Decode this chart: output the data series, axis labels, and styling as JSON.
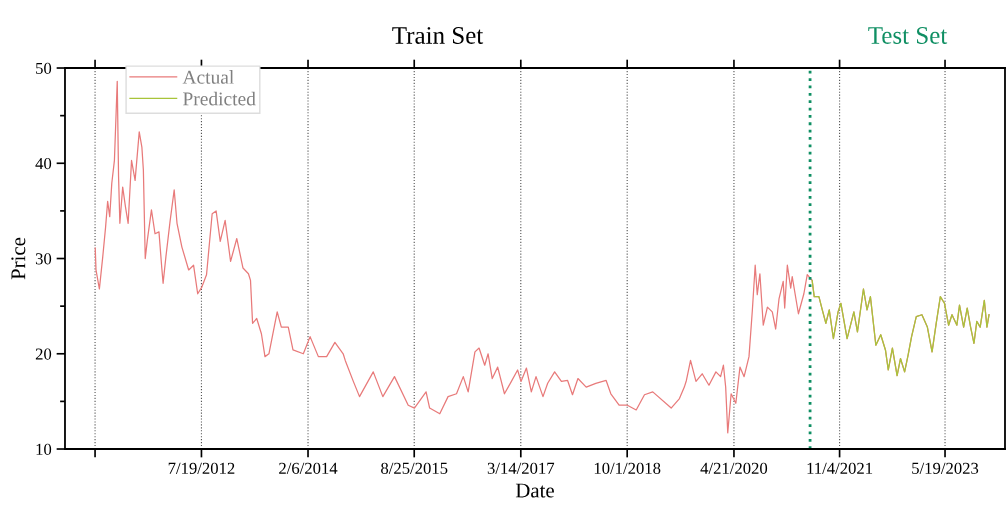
{
  "chart_data": {
    "type": "line",
    "title": "Train Set",
    "xlabel": "Date",
    "ylabel": "Price",
    "xlim": [
      "2010-07-24",
      "2024-04-02"
    ],
    "ylim": [
      10,
      50
    ],
    "xticks": [
      {
        "value": "2010-12-31",
        "label": null
      },
      {
        "value": "2012-07-19",
        "label": "7/19/2012"
      },
      {
        "value": "2014-02-06",
        "label": "2/6/2014"
      },
      {
        "value": "2015-08-25",
        "label": "8/25/2015"
      },
      {
        "value": "2017-03-14",
        "label": "3/14/2017"
      },
      {
        "value": "2018-10-01",
        "label": "10/1/2018"
      },
      {
        "value": "2020-04-21",
        "label": "4/21/2020"
      },
      {
        "value": "2021-11-04",
        "label": "11/4/2021"
      },
      {
        "value": "2023-05-19",
        "label": "5/19/2023"
      }
    ],
    "yticks": [
      10,
      {
        "value": 15,
        "label": null
      },
      20,
      {
        "value": 25,
        "label": null
      },
      30,
      {
        "value": 35,
        "label": null
      },
      40,
      {
        "value": 45,
        "label": null
      },
      50
    ],
    "grid": "x",
    "legend": "top left",
    "ref_lines": [
      {
        "axis": "x",
        "value": "2021-05-31",
        "label": "Test Set",
        "color": "#0f8f63",
        "line_style": "dotted"
      }
    ],
    "series": [
      {
        "name": "Actual",
        "color": "#e87a7a",
        "x": [
          "2011-01-01",
          "2011-01-05",
          "2011-01-23",
          "2011-02-10",
          "2011-02-25",
          "2011-03-08",
          "2011-03-19",
          "2011-03-30",
          "2011-04-13",
          "2011-04-28",
          "2011-05-05",
          "2011-05-12",
          "2011-05-27",
          "2011-06-11",
          "2011-06-25",
          "2011-07-13",
          "2011-08-01",
          "2011-08-23",
          "2011-09-06",
          "2011-09-14",
          "2011-09-24",
          "2011-10-05",
          "2011-10-27",
          "2011-11-15",
          "2011-12-06",
          "2011-12-21",
          "2011-12-28",
          "2012-01-12",
          "2012-02-03",
          "2012-02-25",
          "2012-03-11",
          "2012-04-06",
          "2012-05-12",
          "2012-06-07",
          "2012-06-29",
          "2012-07-21",
          "2012-08-15",
          "2012-09-14",
          "2012-10-05",
          "2012-10-27",
          "2012-11-22",
          "2012-12-21",
          "2013-01-23",
          "2013-02-25",
          "2013-03-26",
          "2013-04-06",
          "2013-04-17",
          "2013-05-09",
          "2013-06-03",
          "2013-06-22",
          "2013-07-13",
          "2013-08-26",
          "2013-09-17",
          "2013-10-24",
          "2013-11-18",
          "2014-01-12",
          "2014-02-17",
          "2014-04-02",
          "2014-05-16",
          "2014-06-29",
          "2014-08-12",
          "2014-08-23",
          "2014-10-05",
          "2014-11-07",
          "2015-01-19",
          "2015-03-11",
          "2015-05-12",
          "2015-07-24",
          "2015-08-26",
          "2015-10-27",
          "2015-11-15",
          "2016-01-08",
          "2016-02-21",
          "2016-04-06",
          "2016-05-12",
          "2016-06-07",
          "2016-07-13",
          "2016-08-04",
          "2016-09-03",
          "2016-09-21",
          "2016-10-13",
          "2016-11-11",
          "2016-12-17",
          "2017-01-23",
          "2017-02-25",
          "2017-03-15",
          "2017-04-13",
          "2017-05-09",
          "2017-06-03",
          "2017-07-10",
          "2017-08-04",
          "2017-09-10",
          "2017-10-16",
          "2017-11-18",
          "2017-12-14",
          "2018-01-12",
          "2018-02-25",
          "2018-04-17",
          "2018-06-11",
          "2018-07-06",
          "2018-08-19",
          "2018-10-02",
          "2018-11-18",
          "2019-01-01",
          "2019-02-14",
          "2019-05-23",
          "2019-07-06",
          "2019-08-01",
          "2019-08-12",
          "2019-09-03",
          "2019-10-02",
          "2019-11-04",
          "2019-12-10",
          "2020-01-16",
          "2020-02-10",
          "2020-02-25",
          "2020-03-08",
          "2020-03-19",
          "2020-04-06",
          "2020-05-01",
          "2020-05-23",
          "2020-06-14",
          "2020-07-10",
          "2020-07-28",
          "2020-08-12",
          "2020-08-23",
          "2020-09-06",
          "2020-09-24",
          "2020-10-16",
          "2020-11-11",
          "2020-11-29",
          "2020-12-17",
          "2021-01-08",
          "2021-01-16",
          "2021-01-30",
          "2021-02-17",
          "2021-02-25",
          "2021-03-30",
          "2021-04-28",
          "2021-05-16",
          "2021-06-11",
          "2021-06-22",
          "2021-07-17",
          "2021-08-04",
          "2021-08-23",
          "2021-09-10",
          "2021-10-02",
          "2021-10-27",
          "2021-11-11",
          "2021-12-14",
          "2022-01-19",
          "2022-02-07",
          "2022-03-11",
          "2022-03-30",
          "2022-04-17",
          "2022-05-16",
          "2022-06-11",
          "2022-07-06",
          "2022-07-21",
          "2022-08-12",
          "2022-09-06",
          "2022-09-24",
          "2022-10-16",
          "2022-11-04",
          "2022-11-22",
          "2022-12-17",
          "2023-01-16",
          "2023-02-14",
          "2023-03-11",
          "2023-04-02",
          "2023-04-24",
          "2023-05-16",
          "2023-06-07",
          "2023-06-25",
          "2023-07-21",
          "2023-08-04",
          "2023-08-26",
          "2023-09-14",
          "2023-10-02",
          "2023-10-20",
          "2023-11-04",
          "2023-11-22",
          "2023-12-14",
          "2023-12-28",
          "2024-01-08"
        ],
        "values": [
          31.1,
          28.8,
          26.8,
          30.2,
          33.3,
          36.0,
          34.4,
          37.9,
          40.3,
          48.6,
          38.6,
          33.7,
          37.5,
          35.4,
          33.7,
          40.3,
          38.2,
          43.3,
          41.7,
          39.3,
          30.0,
          31.9,
          35.1,
          32.6,
          32.8,
          29.0,
          27.4,
          30.2,
          33.9,
          37.2,
          33.7,
          31.2,
          28.8,
          29.3,
          26.3,
          27.0,
          28.3,
          34.7,
          35.0,
          31.8,
          34.0,
          29.7,
          32.1,
          29.0,
          28.4,
          27.7,
          23.2,
          23.7,
          22.1,
          19.7,
          20.0,
          24.4,
          22.8,
          22.8,
          20.4,
          20.0,
          21.8,
          19.7,
          19.7,
          21.2,
          20.0,
          19.3,
          17.1,
          15.5,
          18.1,
          15.5,
          17.6,
          14.6,
          14.3,
          16.0,
          14.3,
          13.7,
          15.5,
          15.8,
          17.6,
          16.0,
          20.2,
          20.6,
          18.8,
          20.0,
          17.4,
          18.6,
          15.8,
          17.1,
          18.3,
          17.1,
          18.5,
          16.0,
          17.6,
          15.5,
          16.9,
          18.1,
          17.1,
          17.2,
          15.7,
          17.4,
          16.5,
          16.9,
          17.2,
          15.8,
          14.6,
          14.6,
          14.1,
          15.7,
          16.0,
          14.3,
          15.3,
          16.5,
          17.2,
          19.3,
          17.1,
          17.9,
          16.7,
          18.1,
          17.6,
          18.8,
          16.5,
          11.7,
          15.8,
          14.8,
          18.6,
          17.6,
          19.7,
          24.6,
          29.3,
          26.2,
          28.4,
          23.0,
          24.9,
          24.4,
          22.6,
          25.8,
          27.6,
          24.8,
          29.3,
          26.9,
          28.1,
          24.2,
          26.3,
          28.3,
          27.7,
          26.0,
          26.0,
          24.6,
          23.2,
          24.6,
          21.6,
          24.4,
          25.3,
          21.6,
          24.4,
          22.3,
          26.8,
          24.6,
          26.0,
          20.9,
          22.0,
          20.4,
          18.3,
          20.6,
          17.7,
          19.5,
          18.1,
          19.9,
          21.8,
          23.9,
          24.1,
          22.8,
          20.2,
          23.2,
          26.0,
          25.3,
          23.0,
          24.1,
          23.0,
          25.1,
          22.8,
          24.8,
          22.8,
          21.1,
          23.4,
          22.8,
          25.6,
          22.8,
          24.1
        ]
      },
      {
        "name": "Predicted",
        "color": "#a8c43a",
        "x": [
          "2021-06-11",
          "2021-06-22",
          "2021-07-17",
          "2021-08-04",
          "2021-08-23",
          "2021-09-10",
          "2021-10-02",
          "2021-10-27",
          "2021-11-11",
          "2021-12-14",
          "2022-01-19",
          "2022-02-07",
          "2022-03-11",
          "2022-03-30",
          "2022-04-17",
          "2022-05-16",
          "2022-06-11",
          "2022-07-06",
          "2022-07-21",
          "2022-08-12",
          "2022-09-06",
          "2022-09-24",
          "2022-10-16",
          "2022-11-04",
          "2022-11-22",
          "2022-12-17",
          "2023-01-16",
          "2023-02-14",
          "2023-03-11",
          "2023-04-02",
          "2023-04-24",
          "2023-05-16",
          "2023-06-07",
          "2023-06-25",
          "2023-07-21",
          "2023-08-04",
          "2023-08-26",
          "2023-09-14",
          "2023-10-02",
          "2023-10-20",
          "2023-11-04",
          "2023-11-22",
          "2023-12-14",
          "2023-12-28",
          "2024-01-08"
        ],
        "values": [
          27.7,
          26.0,
          26.0,
          24.6,
          23.2,
          24.6,
          21.6,
          24.4,
          25.3,
          21.6,
          24.4,
          22.3,
          26.8,
          24.6,
          26.0,
          20.9,
          22.0,
          20.4,
          18.3,
          20.6,
          17.7,
          19.5,
          18.1,
          19.9,
          21.8,
          23.9,
          24.1,
          22.8,
          20.2,
          23.2,
          26.0,
          25.3,
          23.0,
          24.1,
          23.0,
          25.1,
          22.8,
          24.8,
          22.8,
          21.1,
          23.4,
          22.8,
          25.6,
          22.8,
          24.1
        ]
      }
    ]
  }
}
